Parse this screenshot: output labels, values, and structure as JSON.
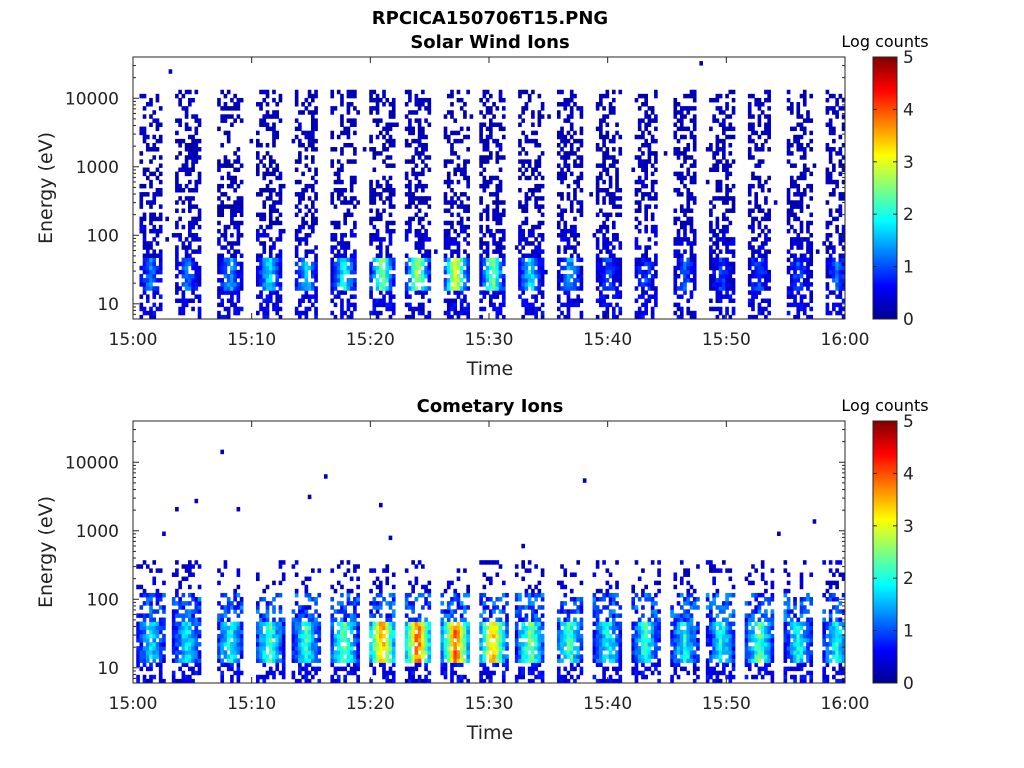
{
  "figure": {
    "title": "RPCICA150706T15.PNG"
  },
  "chart_data": [
    {
      "type": "heatmap",
      "title": "Solar Wind Ions",
      "xlabel": "Time",
      "ylabel": "Energy (eV)",
      "x_range": [
        "15:00",
        "16:00"
      ],
      "x_ticks": [
        "15:00",
        "15:10",
        "15:20",
        "15:30",
        "15:40",
        "15:50",
        "16:00"
      ],
      "y_scale": "log",
      "y_range": [
        6,
        40000
      ],
      "y_ticks": [
        "10",
        "100",
        "1000",
        "10000"
      ],
      "colorbar": {
        "label": "Log counts",
        "range": [
          0,
          5
        ],
        "ticks": [
          "0",
          "1",
          "2",
          "3",
          "4",
          "5"
        ],
        "colormap": "jet"
      },
      "sweep_centers_min": [
        1.5,
        4.6,
        8.2,
        11.5,
        14.6,
        17.8,
        21.0,
        24.0,
        27.2,
        30.3,
        33.5,
        36.8,
        40.0,
        43.2,
        46.5,
        49.6,
        52.8,
        56.1,
        59.3
      ],
      "sweep_peak_log_counts": [
        1.3,
        1.2,
        1.5,
        1.8,
        1.6,
        2.0,
        2.6,
        2.9,
        3.1,
        2.5,
        1.8,
        1.5,
        1.0,
        0.9,
        1.0,
        0.9,
        1.0,
        1.0,
        1.2
      ],
      "peak_energy_eV": [
        15,
        40
      ]
    },
    {
      "type": "heatmap",
      "title": "Cometary Ions",
      "xlabel": "Time",
      "ylabel": "Energy (eV)",
      "x_range": [
        "15:00",
        "16:00"
      ],
      "x_ticks": [
        "15:00",
        "15:10",
        "15:20",
        "15:30",
        "15:40",
        "15:50",
        "16:00"
      ],
      "y_scale": "log",
      "y_range": [
        6,
        40000
      ],
      "y_ticks": [
        "10",
        "100",
        "1000",
        "10000"
      ],
      "colorbar": {
        "label": "Log counts",
        "range": [
          0,
          5
        ],
        "ticks": [
          "0",
          "1",
          "2",
          "3",
          "4",
          "5"
        ],
        "colormap": "jet"
      },
      "sweep_centers_min": [
        1.5,
        4.6,
        8.2,
        11.5,
        14.6,
        17.8,
        21.0,
        24.0,
        27.2,
        30.3,
        33.5,
        36.8,
        40.0,
        43.2,
        46.5,
        49.6,
        52.8,
        56.1,
        59.3
      ],
      "sweep_peak_log_counts": [
        1.8,
        1.9,
        2.0,
        2.3,
        2.2,
        2.5,
        3.7,
        4.0,
        4.0,
        3.6,
        2.6,
        2.3,
        2.0,
        2.1,
        2.0,
        2.0,
        2.4,
        2.0,
        2.0
      ],
      "peak_energy_eV": [
        15,
        45
      ]
    }
  ]
}
